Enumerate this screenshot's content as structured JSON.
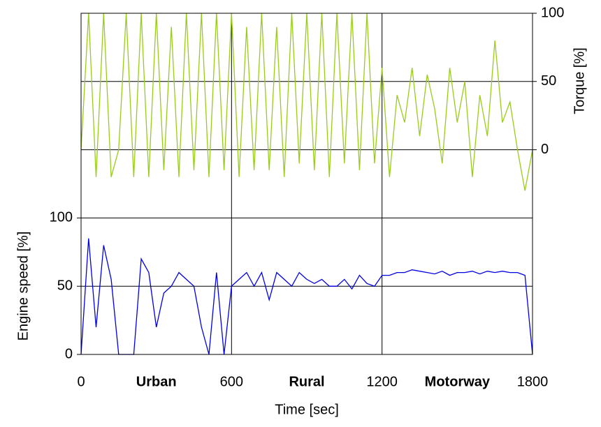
{
  "chart_data": {
    "type": "line",
    "xlabel": "Time [sec]",
    "ylabel": "Engine speed [%]",
    "y2label": "Torque [%]",
    "annotations": [
      "Urban",
      "Rural",
      "Motorway"
    ],
    "x": [
      0,
      30,
      60,
      90,
      120,
      150,
      180,
      210,
      240,
      270,
      300,
      330,
      360,
      390,
      420,
      450,
      480,
      510,
      540,
      570,
      600,
      630,
      660,
      690,
      720,
      750,
      780,
      810,
      840,
      870,
      900,
      930,
      960,
      990,
      1020,
      1050,
      1080,
      1110,
      1140,
      1170,
      1200,
      1230,
      1260,
      1290,
      1320,
      1350,
      1380,
      1410,
      1440,
      1470,
      1500,
      1530,
      1560,
      1590,
      1620,
      1650,
      1680,
      1710,
      1740,
      1770,
      1800
    ],
    "series": [
      {
        "name": "Engine speed",
        "color": "#0000e6",
        "axis": "y",
        "values": [
          0,
          85,
          20,
          80,
          55,
          0,
          0,
          0,
          70,
          60,
          20,
          45,
          50,
          60,
          55,
          50,
          20,
          0,
          60,
          0,
          50,
          55,
          60,
          50,
          60,
          40,
          60,
          55,
          50,
          60,
          55,
          52,
          55,
          50,
          50,
          55,
          48,
          58,
          52,
          50,
          58,
          58,
          60,
          60,
          62,
          61,
          60,
          59,
          61,
          58,
          60,
          60,
          61,
          59,
          61,
          60,
          61,
          60,
          60,
          58,
          0
        ]
      },
      {
        "name": "Torque",
        "color": "#99cc1a",
        "axis": "y2",
        "values": [
          0,
          100,
          -20,
          100,
          -20,
          0,
          100,
          -20,
          100,
          -20,
          100,
          -15,
          90,
          -20,
          100,
          -15,
          100,
          -20,
          100,
          -15,
          100,
          -20,
          90,
          -15,
          100,
          -15,
          90,
          -20,
          100,
          -10,
          100,
          -15,
          100,
          -20,
          100,
          -10,
          100,
          -15,
          100,
          -10,
          60,
          -20,
          40,
          20,
          60,
          10,
          55,
          30,
          -10,
          60,
          20,
          50,
          -20,
          40,
          10,
          80,
          20,
          35,
          0,
          -30,
          0
        ]
      }
    ],
    "xlim": [
      0,
      1800
    ],
    "xticks": [
      0,
      600,
      1200,
      1800
    ],
    "ylim": [
      0,
      250
    ],
    "yticks": [
      0,
      50,
      100
    ],
    "y2lim": [
      -150,
      100
    ],
    "y2ticks": [
      0,
      50,
      100
    ],
    "grid": true
  }
}
